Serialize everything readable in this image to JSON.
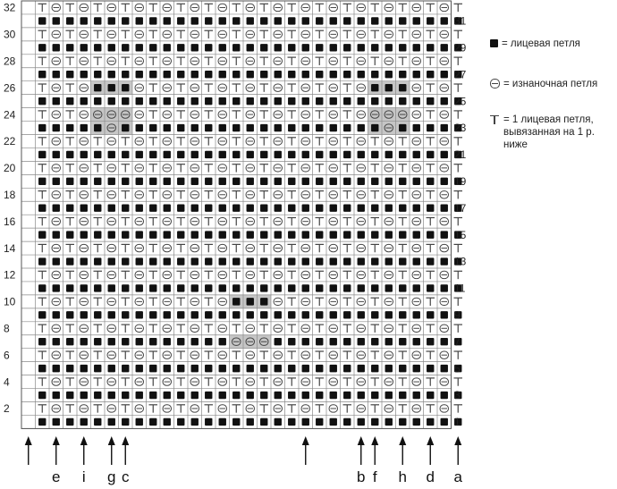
{
  "chart": {
    "rows_left": [
      "32",
      "30",
      "28",
      "26",
      "24",
      "22",
      "20",
      "18",
      "16",
      "14",
      "12",
      "10",
      "8",
      "6",
      "4",
      "2"
    ],
    "rows_right": [
      "31",
      "29",
      "27",
      "25",
      "23",
      "21",
      "19",
      "17",
      "15",
      "13",
      "11",
      "9",
      "7",
      "5",
      "3",
      "1"
    ],
    "column_markers": [
      {
        "label": "",
        "col": 0
      },
      {
        "label": "e",
        "col": 2
      },
      {
        "label": "i",
        "col": 4
      },
      {
        "label": "g",
        "col": 6
      },
      {
        "label": "c",
        "col": 7
      },
      {
        "label": "",
        "col": 20
      },
      {
        "label": "b",
        "col": 24
      },
      {
        "label": "f",
        "col": 25
      },
      {
        "label": "h",
        "col": 27
      },
      {
        "label": "d",
        "col": 29
      },
      {
        "label": "a",
        "col": 31
      }
    ]
  },
  "legend": {
    "knit": "= лицевая петля",
    "purl": "= изнаночная петля",
    "tuck": "= 1 лицевая петля, вывязанная на 1 р. ниже"
  },
  "colors": {
    "knit": "#111111",
    "symbol": "#444444",
    "grid": "#8a8a8a",
    "highlight": "#c6c6c6"
  }
}
